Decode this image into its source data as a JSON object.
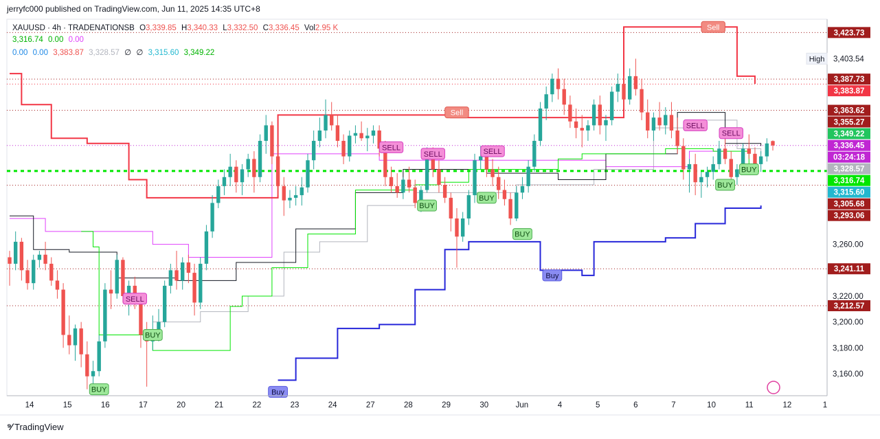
{
  "header": {
    "published": "jerryfc000 published on TradingView.com, Jun 11, 2025 14:35 UTC+8"
  },
  "legend": {
    "symbol": "XAUUSD · 4h · TRADENATIONSB",
    "o_label": "O",
    "o": "3,339.85",
    "h_label": "H",
    "h": "3,340.33",
    "l_label": "L",
    "l": "3,332.50",
    "c_label": "C",
    "c": "3,336.45",
    "vol_label": "Vol",
    "vol": "2.95 K",
    "row2": [
      "3,316.74",
      "0.00",
      "0.00"
    ],
    "row3": [
      "0.00",
      "0.00",
      "3,383.87",
      "3,328.57",
      "∅",
      "∅",
      "3,315.60",
      "3,349.22"
    ]
  },
  "colors": {
    "up": "#26a69a",
    "down": "#ef5350",
    "sell_line": "#f23645",
    "buy_line": "#2626d9",
    "green_line": "#00e600",
    "grey_line": "#b2b5be",
    "magenta": "#e040fb"
  },
  "footer": {
    "brand": "TradingView"
  },
  "chart_data": {
    "type": "candlestick",
    "symbol": "XAUUSD",
    "interval": "4h",
    "ylim": [
      3143,
      3434
    ],
    "y_ticks": [
      3160,
      3180,
      3200,
      3220,
      3240,
      3260
    ],
    "x_ticks": [
      "14",
      "15",
      "16",
      "17",
      "20",
      "21",
      "22",
      "23",
      "24",
      "27",
      "28",
      "29",
      "30",
      "Jun",
      "4",
      "5",
      "6",
      "7",
      "10",
      "11",
      "12",
      "1"
    ],
    "high_label": {
      "text": "High",
      "value": "3,403.54"
    },
    "price_labels": [
      {
        "value": 3423.73,
        "text": "3,423.73",
        "color": "#a11d1d"
      },
      {
        "value": 3387.73,
        "text": "3,387.73",
        "color": "#a11d1d"
      },
      {
        "value": 3383.87,
        "text": "3,383.87",
        "color": "#f23645"
      },
      {
        "value": 3363.62,
        "text": "3,363.62",
        "color": "#a11d1d"
      },
      {
        "value": 3355.27,
        "text": "3,355.27",
        "color": "#a11d1d"
      },
      {
        "value": 3349.22,
        "text": "3,349.22",
        "color": "#22c55e"
      },
      {
        "value": 3336.45,
        "text": "3,336.45",
        "color": "#c026d3"
      },
      {
        "value": 3333.6,
        "text": "03:24:18",
        "color": "#c026d3"
      },
      {
        "value": 3328.57,
        "text": "3,328.57",
        "color": "#b2b5be"
      },
      {
        "value": 3316.74,
        "text": "3,316.74",
        "color": "#00e600"
      },
      {
        "value": 3315.6,
        "text": "3,315.60",
        "color": "#22b8cf"
      },
      {
        "value": 3305.68,
        "text": "3,305.68",
        "color": "#a11d1d"
      },
      {
        "value": 3293.06,
        "text": "3,293.06",
        "color": "#a11d1d"
      },
      {
        "value": 3241.11,
        "text": "3,241.11",
        "color": "#a11d1d"
      },
      {
        "value": 3212.57,
        "text": "3,212.57",
        "color": "#a11d1d"
      }
    ],
    "candles": [
      [
        3250,
        3255,
        3228,
        3245
      ],
      [
        3245,
        3270,
        3240,
        3262
      ],
      [
        3262,
        3265,
        3232,
        3240
      ],
      [
        3240,
        3248,
        3225,
        3230
      ],
      [
        3230,
        3252,
        3225,
        3248
      ],
      [
        3248,
        3255,
        3242,
        3252
      ],
      [
        3252,
        3262,
        3240,
        3245
      ],
      [
        3245,
        3250,
        3228,
        3232
      ],
      [
        3232,
        3240,
        3218,
        3225
      ],
      [
        3225,
        3230,
        3180,
        3190
      ],
      [
        3190,
        3205,
        3175,
        3182
      ],
      [
        3182,
        3198,
        3170,
        3195
      ],
      [
        3195,
        3200,
        3165,
        3175
      ],
      [
        3175,
        3185,
        3148,
        3158
      ],
      [
        3158,
        3170,
        3145,
        3162
      ],
      [
        3162,
        3190,
        3158,
        3185
      ],
      [
        3185,
        3230,
        3180,
        3225
      ],
      [
        3225,
        3240,
        3210,
        3222
      ],
      [
        3222,
        3252,
        3218,
        3248
      ],
      [
        3248,
        3250,
        3215,
        3220
      ],
      [
        3220,
        3232,
        3205,
        3228
      ],
      [
        3228,
        3235,
        3210,
        3215
      ],
      [
        3215,
        3220,
        3180,
        3190
      ],
      [
        3190,
        3200,
        3150,
        3185
      ],
      [
        3185,
        3205,
        3178,
        3192
      ],
      [
        3192,
        3210,
        3185,
        3200
      ],
      [
        3200,
        3232,
        3196,
        3228
      ],
      [
        3228,
        3245,
        3222,
        3240
      ],
      [
        3240,
        3255,
        3225,
        3232
      ],
      [
        3232,
        3250,
        3225,
        3246
      ],
      [
        3246,
        3252,
        3230,
        3238
      ],
      [
        3238,
        3245,
        3205,
        3215
      ],
      [
        3215,
        3250,
        3210,
        3245
      ],
      [
        3245,
        3275,
        3240,
        3270
      ],
      [
        3270,
        3298,
        3265,
        3292
      ],
      [
        3292,
        3310,
        3288,
        3305
      ],
      [
        3305,
        3318,
        3298,
        3312
      ],
      [
        3312,
        3330,
        3305,
        3320
      ],
      [
        3320,
        3325,
        3300,
        3308
      ],
      [
        3308,
        3322,
        3298,
        3318
      ],
      [
        3318,
        3330,
        3312,
        3326
      ],
      [
        3326,
        3332,
        3300,
        3312
      ],
      [
        3312,
        3345,
        3308,
        3340
      ],
      [
        3340,
        3360,
        3330,
        3352
      ],
      [
        3352,
        3355,
        3322,
        3328
      ],
      [
        3328,
        3335,
        3298,
        3305
      ],
      [
        3305,
        3312,
        3282,
        3294
      ],
      [
        3294,
        3302,
        3288,
        3296
      ],
      [
        3296,
        3305,
        3290,
        3298
      ],
      [
        3298,
        3312,
        3290,
        3304
      ],
      [
        3304,
        3330,
        3300,
        3325
      ],
      [
        3325,
        3348,
        3318,
        3340
      ],
      [
        3340,
        3358,
        3335,
        3348
      ],
      [
        3348,
        3372,
        3342,
        3360
      ],
      [
        3360,
        3370,
        3348,
        3352
      ],
      [
        3352,
        3360,
        3335,
        3340
      ],
      [
        3340,
        3345,
        3322,
        3328
      ],
      [
        3328,
        3348,
        3324,
        3344
      ],
      [
        3344,
        3352,
        3338,
        3346
      ],
      [
        3346,
        3355,
        3340,
        3342
      ],
      [
        3342,
        3350,
        3332,
        3344
      ],
      [
        3344,
        3352,
        3338,
        3348
      ],
      [
        3348,
        3352,
        3328,
        3334
      ],
      [
        3334,
        3340,
        3305,
        3312
      ],
      [
        3312,
        3320,
        3300,
        3305
      ],
      [
        3305,
        3315,
        3296,
        3300
      ],
      [
        3300,
        3312,
        3295,
        3310
      ],
      [
        3310,
        3320,
        3300,
        3304
      ],
      [
        3304,
        3310,
        3288,
        3292
      ],
      [
        3292,
        3305,
        3285,
        3302
      ],
      [
        3302,
        3335,
        3300,
        3328
      ],
      [
        3328,
        3335,
        3312,
        3318
      ],
      [
        3318,
        3325,
        3300,
        3306
      ],
      [
        3306,
        3312,
        3292,
        3296
      ],
      [
        3296,
        3300,
        3270,
        3280
      ],
      [
        3280,
        3288,
        3242,
        3266
      ],
      [
        3266,
        3285,
        3262,
        3280
      ],
      [
        3280,
        3302,
        3275,
        3298
      ],
      [
        3298,
        3330,
        3292,
        3325
      ],
      [
        3325,
        3336,
        3318,
        3328
      ],
      [
        3328,
        3334,
        3312,
        3318
      ],
      [
        3318,
        3326,
        3305,
        3312
      ],
      [
        3312,
        3320,
        3295,
        3302
      ],
      [
        3302,
        3310,
        3290,
        3295
      ],
      [
        3295,
        3300,
        3275,
        3280
      ],
      [
        3280,
        3305,
        3278,
        3300
      ],
      [
        3300,
        3312,
        3295,
        3305
      ],
      [
        3305,
        3325,
        3300,
        3320
      ],
      [
        3320,
        3345,
        3316,
        3340
      ],
      [
        3340,
        3370,
        3336,
        3365
      ],
      [
        3365,
        3382,
        3356,
        3376
      ],
      [
        3376,
        3392,
        3370,
        3388
      ],
      [
        3388,
        3396,
        3372,
        3380
      ],
      [
        3380,
        3388,
        3360,
        3368
      ],
      [
        3368,
        3375,
        3350,
        3355
      ],
      [
        3355,
        3365,
        3342,
        3350
      ],
      [
        3350,
        3360,
        3335,
        3348
      ],
      [
        3348,
        3356,
        3340,
        3352
      ],
      [
        3352,
        3372,
        3348,
        3368
      ],
      [
        3368,
        3375,
        3345,
        3352
      ],
      [
        3352,
        3360,
        3340,
        3356
      ],
      [
        3356,
        3382,
        3352,
        3378
      ],
      [
        3378,
        3392,
        3370,
        3384
      ],
      [
        3384,
        3390,
        3365,
        3372
      ],
      [
        3372,
        3396,
        3368,
        3390
      ],
      [
        3390,
        3403.5,
        3375,
        3380
      ],
      [
        3380,
        3388,
        3356,
        3362
      ],
      [
        3362,
        3372,
        3342,
        3348
      ],
      [
        3348,
        3362,
        3340,
        3358
      ],
      [
        3358,
        3370,
        3348,
        3352
      ],
      [
        3352,
        3366,
        3345,
        3360
      ],
      [
        3360,
        3370,
        3342,
        3348
      ],
      [
        3348,
        3358,
        3330,
        3336
      ],
      [
        3336,
        3342,
        3310,
        3318
      ],
      [
        3318,
        3326,
        3300,
        3322
      ],
      [
        3322,
        3330,
        3298,
        3308
      ],
      [
        3308,
        3316,
        3296,
        3312
      ],
      [
        3312,
        3320,
        3304,
        3316
      ],
      [
        3316,
        3328,
        3310,
        3322
      ],
      [
        3322,
        3340,
        3318,
        3334
      ],
      [
        3334,
        3342,
        3322,
        3326
      ],
      [
        3326,
        3332,
        3308,
        3312
      ],
      [
        3312,
        3322,
        3306,
        3318
      ],
      [
        3318,
        3338,
        3315,
        3334
      ],
      [
        3334,
        3345,
        3326,
        3330
      ],
      [
        3330,
        3335,
        3318,
        3322
      ],
      [
        3322,
        3332,
        3316,
        3328
      ],
      [
        3328,
        3342,
        3324,
        3338
      ],
      [
        3339.85,
        3340.33,
        3332.5,
        3336.45
      ]
    ],
    "lines": {
      "sell_stop": [
        [
          0,
          3392
        ],
        [
          2,
          3368
        ],
        [
          7,
          3342
        ],
        [
          13,
          3338
        ],
        [
          20,
          3310
        ],
        [
          23,
          3296
        ],
        [
          44,
          3296
        ],
        [
          45,
          3360
        ],
        [
          74,
          3358
        ],
        [
          86,
          3358
        ],
        [
          102,
          3358
        ],
        [
          103,
          3428
        ],
        [
          119,
          3428
        ],
        [
          122,
          3390
        ],
        [
          125,
          3384
        ]
      ],
      "buy_stop": [
        [
          45,
          3155
        ],
        [
          48,
          3172
        ],
        [
          55,
          3195
        ],
        [
          62,
          3198
        ],
        [
          68,
          3225
        ],
        [
          73,
          3256
        ],
        [
          77,
          3262
        ],
        [
          86,
          3262
        ],
        [
          89,
          3240
        ],
        [
          96,
          3236
        ],
        [
          98,
          3262
        ],
        [
          103,
          3262
        ],
        [
          110,
          3265
        ],
        [
          115,
          3276
        ],
        [
          120,
          3288
        ],
        [
          126,
          3290
        ]
      ],
      "green_trail": [
        [
          12,
          3270
        ],
        [
          14,
          3258
        ],
        [
          15,
          3190
        ],
        [
          20,
          3190
        ],
        [
          24,
          3178
        ],
        [
          34,
          3178
        ],
        [
          37,
          3212
        ],
        [
          39,
          3220
        ],
        [
          44,
          3242
        ],
        [
          50,
          3268
        ],
        [
          58,
          3302
        ],
        [
          68,
          3306
        ],
        [
          72,
          3308
        ],
        [
          77,
          3318
        ],
        [
          92,
          3326
        ],
        [
          96,
          3330
        ],
        [
          108,
          3330
        ],
        [
          110,
          3334
        ],
        [
          118,
          3332
        ],
        [
          124,
          3316
        ]
      ],
      "grey_trail": [
        [
          24,
          3200
        ],
        [
          32,
          3208
        ],
        [
          40,
          3220
        ],
        [
          46,
          3254
        ],
        [
          52,
          3262
        ],
        [
          60,
          3290
        ],
        [
          68,
          3300
        ],
        [
          77,
          3300
        ],
        [
          85,
          3306
        ],
        [
          98,
          3318
        ],
        [
          108,
          3350
        ],
        [
          114,
          3356
        ],
        [
          122,
          3334
        ],
        [
          126,
          3330
        ]
      ],
      "black_trail": [
        [
          0,
          3282
        ],
        [
          4,
          3256
        ],
        [
          10,
          3254
        ],
        [
          18,
          3234
        ],
        [
          28,
          3232
        ],
        [
          38,
          3246
        ],
        [
          48,
          3272
        ],
        [
          58,
          3300
        ],
        [
          66,
          3318
        ],
        [
          74,
          3318
        ],
        [
          80,
          3315
        ],
        [
          92,
          3310
        ],
        [
          100,
          3330
        ],
        [
          112,
          3362
        ],
        [
          120,
          3338
        ],
        [
          126,
          3336
        ]
      ],
      "magenta_trail": [
        [
          0,
          3280
        ],
        [
          6,
          3270
        ],
        [
          16,
          3270
        ],
        [
          24,
          3260
        ],
        [
          30,
          3250
        ],
        [
          44,
          3330
        ],
        [
          62,
          3325
        ],
        [
          74,
          3325
        ],
        [
          86,
          3325
        ],
        [
          100,
          3320
        ],
        [
          114,
          3332
        ],
        [
          120,
          3336
        ]
      ]
    },
    "horizontal_lines": [
      {
        "value": 3423.73,
        "style": "dotted",
        "color": "#a11d1d"
      },
      {
        "value": 3383.87,
        "style": "dotted",
        "color": "#f23645"
      },
      {
        "value": 3387.73,
        "style": "dotted",
        "color": "#a11d1d"
      },
      {
        "value": 3363.62,
        "style": "dotted",
        "color": "#a11d1d"
      },
      {
        "value": 3336.45,
        "style": "dotted",
        "color": "#c026d3"
      },
      {
        "value": 3316.74,
        "style": "dashed-thick",
        "color": "#00e600"
      },
      {
        "value": 3305.68,
        "style": "dotted",
        "color": "#a11d1d"
      },
      {
        "value": 3241.11,
        "style": "dotted",
        "color": "#a11d1d"
      },
      {
        "value": 3212.57,
        "style": "dotted",
        "color": "#a11d1d"
      }
    ],
    "signals": [
      {
        "text": "SELL",
        "bar": 21,
        "value": 3218,
        "kind": "sell"
      },
      {
        "text": "BUY",
        "bar": 24,
        "value": 3190,
        "kind": "buy"
      },
      {
        "text": "BUY",
        "bar": 15,
        "value": 3148,
        "kind": "buy"
      },
      {
        "text": "Buy",
        "bar": 45,
        "value": 3146,
        "kind": "buy-strong"
      },
      {
        "text": "SELL",
        "bar": 64,
        "value": 3335,
        "kind": "sell"
      },
      {
        "text": "BUY",
        "bar": 70,
        "value": 3290,
        "kind": "buy"
      },
      {
        "text": "SELL",
        "bar": 71,
        "value": 3330,
        "kind": "sell"
      },
      {
        "text": "Sell",
        "bar": 75,
        "value": 3362,
        "kind": "sell-strong"
      },
      {
        "text": "SELL",
        "bar": 81,
        "value": 3332,
        "kind": "sell"
      },
      {
        "text": "BUY",
        "bar": 80,
        "value": 3296,
        "kind": "buy"
      },
      {
        "text": "BUY",
        "bar": 86,
        "value": 3268,
        "kind": "buy"
      },
      {
        "text": "Buy",
        "bar": 91,
        "value": 3236,
        "kind": "buy-strong"
      },
      {
        "text": "SELL",
        "bar": 115,
        "value": 3352,
        "kind": "sell"
      },
      {
        "text": "Sell",
        "bar": 118,
        "value": 3428,
        "kind": "sell-strong"
      },
      {
        "text": "SELL",
        "bar": 121,
        "value": 3346,
        "kind": "sell"
      },
      {
        "text": "BUY",
        "bar": 120,
        "value": 3306,
        "kind": "buy"
      },
      {
        "text": "BUY",
        "bar": 124,
        "value": 3318,
        "kind": "buy"
      }
    ]
  }
}
